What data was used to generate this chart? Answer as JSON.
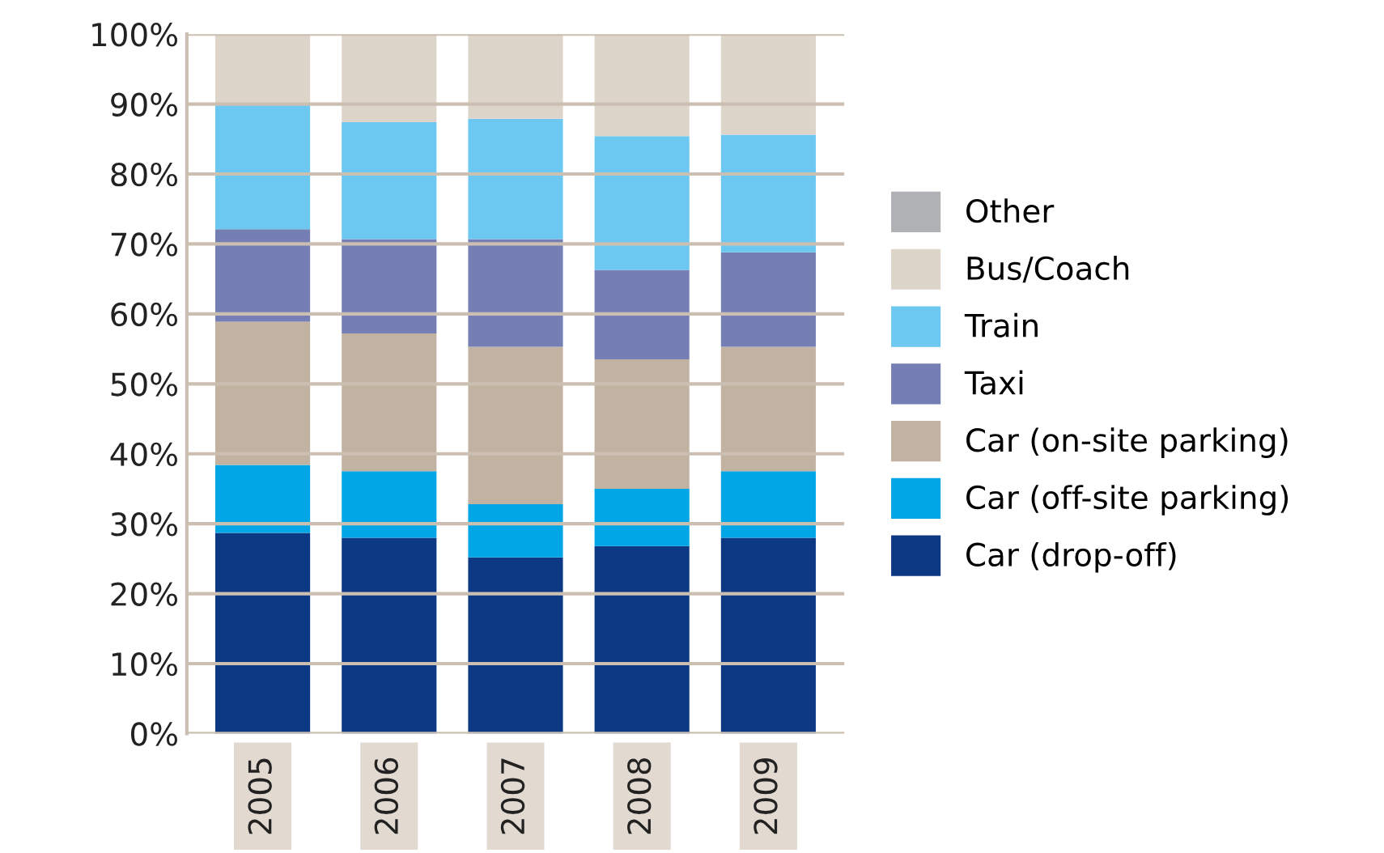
{
  "chart_data": {
    "type": "bar",
    "stacked": true,
    "categories": [
      "2005",
      "2006",
      "2007",
      "2008",
      "2009"
    ],
    "series": [
      {
        "name": "Car (drop-off)",
        "color": "#0d3884",
        "values": [
          28.7,
          28.0,
          25.2,
          26.8,
          28.0
        ]
      },
      {
        "name": "Car (off-site parking)",
        "color": "#00a6e6",
        "values": [
          9.7,
          9.5,
          7.6,
          8.2,
          9.5
        ]
      },
      {
        "name": "Car (on-site parking)",
        "color": "#c2b2a2",
        "values": [
          20.5,
          19.7,
          22.5,
          18.5,
          17.8
        ]
      },
      {
        "name": "Taxi",
        "color": "#757fb3",
        "values": [
          13.2,
          13.5,
          15.4,
          12.8,
          13.5
        ]
      },
      {
        "name": "Train",
        "color": "#6dc8f1",
        "values": [
          17.8,
          16.7,
          17.2,
          19.1,
          16.8
        ]
      },
      {
        "name": "Bus/Coach",
        "color": "#ded5ca",
        "values": [
          10.1,
          12.6,
          12.1,
          14.6,
          14.4
        ]
      },
      {
        "name": "Other",
        "color": "#b0b1b4",
        "values": [
          0,
          0,
          0,
          0,
          0
        ]
      }
    ],
    "ylim": [
      0,
      100
    ],
    "yticks": [
      {
        "value": 0,
        "label": "0%"
      },
      {
        "value": 10,
        "label": "10%"
      },
      {
        "value": 20,
        "label": "20%"
      },
      {
        "value": 30,
        "label": "30%"
      },
      {
        "value": 40,
        "label": "40%"
      },
      {
        "value": 50,
        "label": "50%"
      },
      {
        "value": 60,
        "label": "60%"
      },
      {
        "value": 70,
        "label": "70%"
      },
      {
        "value": 80,
        "label": "80%"
      },
      {
        "value": 90,
        "label": "90%"
      },
      {
        "value": 100,
        "label": "100%"
      }
    ],
    "grid": "y",
    "legend": "right"
  }
}
